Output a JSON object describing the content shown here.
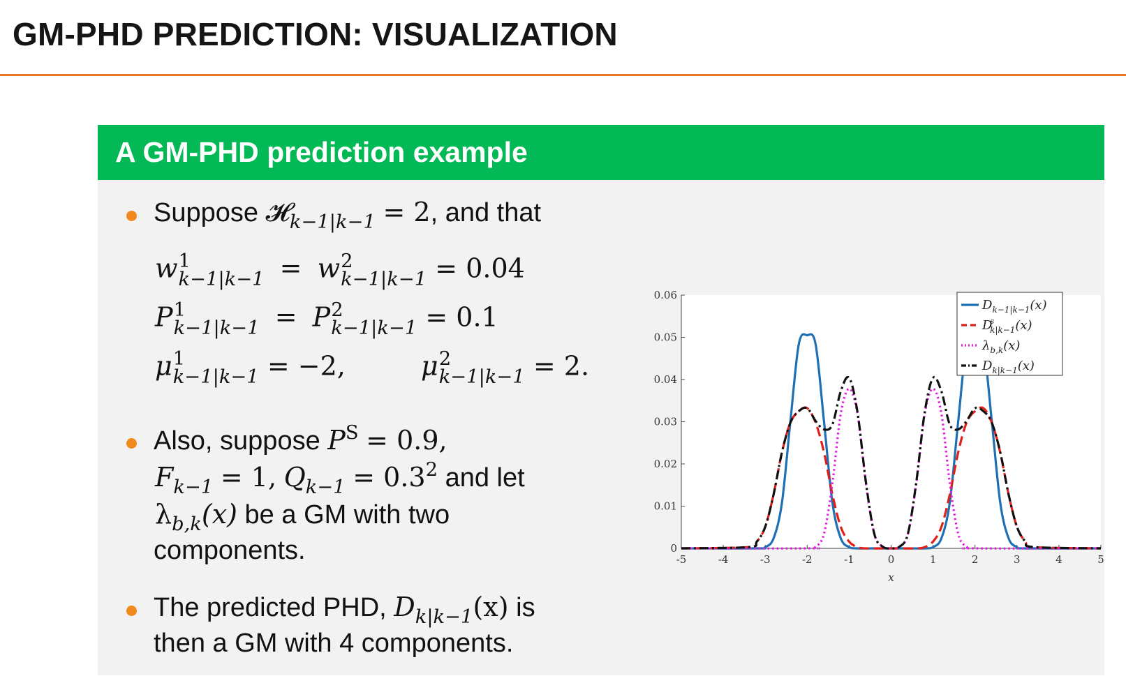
{
  "slide": {
    "title": "GM-PHD PREDICTION: VISUALIZATION"
  },
  "block": {
    "title": "A GM-PHD prediction example"
  },
  "bullets": {
    "b1": {
      "text_pre": "Suppose",
      "H_symbol": "𝓗",
      "H_sub": "k−1|k−1",
      "eq_value": "= 2",
      "text_post": ", and that"
    },
    "eqs": {
      "w_sym": "w",
      "w_sup1": "1",
      "w_sup2": "2",
      "w_sub": "k−1|k−1",
      "w_value": "= 0.04",
      "P_sym": "P",
      "P_sup1": "1",
      "P_sup2": "2",
      "P_sub": "k−1|k−1",
      "P_value": "= 0.1",
      "mu_sym": "μ",
      "mu_sup1": "1",
      "mu_sup2": "2",
      "mu_sub": "k−1|k−1",
      "mu_value1": "= −2,",
      "mu_value2": "= 2."
    },
    "b2": {
      "line1_pre": "Also, suppose",
      "PS_sym": "P",
      "PS_sup": "S",
      "PS_value": "= 0.9,",
      "F_sym": "F",
      "F_sub": "k−1",
      "F_value": "= 1,",
      "Q_sym": "Q",
      "Q_sub": "k−1",
      "Q_value": "= 0.3",
      "Q_sup": "2",
      "line2_post": "and let",
      "lambda_sym": "λ",
      "lambda_sub": "b,k",
      "lambda_arg": "(x)",
      "line3_post": "be a GM with two",
      "line4": "components."
    },
    "b3": {
      "line1_pre": "The predicted PHD,",
      "D_sym": "D",
      "D_sub": "k|k−1",
      "D_arg": "(x)",
      "line1_post": "is",
      "line2": "then a GM with 4 components."
    }
  },
  "chart_data": {
    "type": "line",
    "xlabel": "x",
    "ylabel": "",
    "xlim": [
      -5,
      5
    ],
    "ylim": [
      0,
      0.06
    ],
    "x_ticks": [
      -5,
      -4,
      -3,
      -2,
      -1,
      0,
      1,
      2,
      3,
      4,
      5
    ],
    "y_ticks": [
      0,
      0.01,
      0.02,
      0.03,
      0.04,
      0.05,
      0.06
    ],
    "y_tick_labels": [
      "0",
      "0.01",
      "0.02",
      "0.03",
      "0.04",
      "0.05",
      "0.06"
    ],
    "legend_position": "top-right",
    "series": [
      {
        "name": "D_{k−1|k−1}(x)",
        "legend_label": "D",
        "legend_sub": "k−1|k−1",
        "legend_sup": "",
        "legend_arg": "(x)",
        "color": "#1f6fb4",
        "style": "solid",
        "x": [
          -3.2,
          -3.0,
          -2.8,
          -2.6,
          -2.4,
          -2.2,
          -2.0,
          -1.8,
          -1.6,
          -1.4,
          -1.2,
          -1.0,
          -0.8,
          -0.4,
          0.0,
          0.4,
          0.8,
          1.0,
          1.2,
          1.4,
          1.6,
          1.8,
          2.0,
          2.2,
          2.4,
          2.6,
          2.8,
          3.0,
          3.2
        ],
        "y": [
          0.0,
          0.0003,
          0.0024,
          0.0109,
          0.0302,
          0.0484,
          0.0505,
          0.0484,
          0.0302,
          0.0109,
          0.0024,
          0.0003,
          0.0,
          0.0,
          0.0,
          0.0,
          0.0,
          0.0003,
          0.0024,
          0.0109,
          0.0302,
          0.0484,
          0.0505,
          0.0484,
          0.0302,
          0.0109,
          0.0024,
          0.0003,
          0.0
        ]
      },
      {
        "name": "D^s_{k|k−1}(x)",
        "legend_label": "D",
        "legend_sub": "k|k−1",
        "legend_sup": "s",
        "legend_arg": "(x)",
        "color": "#e0201b",
        "style": "dashed",
        "x": [
          -3.4,
          -3.2,
          -3.0,
          -2.8,
          -2.6,
          -2.4,
          -2.2,
          -2.0,
          -1.8,
          -1.6,
          -1.4,
          -1.2,
          -1.0,
          -0.8,
          -0.6,
          0.0,
          0.6,
          0.8,
          1.0,
          1.2,
          1.4,
          1.6,
          1.8,
          2.0,
          2.2,
          2.4,
          2.6,
          2.8,
          3.0,
          3.2,
          3.4
        ],
        "y": [
          0.0003,
          0.0016,
          0.0051,
          0.0128,
          0.0228,
          0.0298,
          0.0325,
          0.0332,
          0.0298,
          0.0228,
          0.0128,
          0.0051,
          0.0016,
          0.0003,
          0.0,
          0.0,
          0.0,
          0.0003,
          0.0016,
          0.0051,
          0.0128,
          0.0228,
          0.0298,
          0.0325,
          0.0332,
          0.0298,
          0.0228,
          0.0128,
          0.0051,
          0.0016,
          0.0003
        ]
      },
      {
        "name": "λ_{b,k}(x)",
        "legend_label": "λ",
        "legend_sub": "b,k",
        "legend_sup": "",
        "legend_arg": "(x)",
        "color": "#e21fe0",
        "style": "dotted",
        "x": [
          -2.0,
          -1.8,
          -1.6,
          -1.4,
          -1.2,
          -1.0,
          -0.8,
          -0.6,
          -0.4,
          -0.2,
          0.0,
          0.2,
          0.4,
          0.6,
          0.8,
          1.0,
          1.2,
          1.4,
          1.6,
          1.8,
          2.0
        ],
        "y": [
          0.0,
          0.0004,
          0.0034,
          0.0154,
          0.0319,
          0.0378,
          0.0319,
          0.0154,
          0.0034,
          0.0004,
          0.0,
          0.0004,
          0.0034,
          0.0154,
          0.0319,
          0.0378,
          0.0319,
          0.0154,
          0.0034,
          0.0004,
          0.0
        ]
      },
      {
        "name": "D_{k|k−1}(x)",
        "legend_label": "D",
        "legend_sub": "k|k−1",
        "legend_sup": "",
        "legend_arg": "(x)",
        "color": "#111111",
        "style": "dashdot",
        "x": [
          -3.4,
          -3.2,
          -3.0,
          -2.8,
          -2.6,
          -2.4,
          -2.2,
          -2.0,
          -1.8,
          -1.6,
          -1.4,
          -1.2,
          -1.0,
          -0.8,
          -0.6,
          -0.4,
          -0.2,
          0.0,
          0.2,
          0.4,
          0.6,
          0.8,
          1.0,
          1.2,
          1.4,
          1.6,
          1.8,
          2.0,
          2.2,
          2.4,
          2.6,
          2.8,
          3.0,
          3.2,
          3.4
        ],
        "y": [
          0.0003,
          0.0016,
          0.0051,
          0.0128,
          0.0228,
          0.0298,
          0.0325,
          0.0332,
          0.0302,
          0.0282,
          0.0293,
          0.0372,
          0.0404,
          0.0322,
          0.0157,
          0.0034,
          0.0004,
          0.0,
          0.0004,
          0.0034,
          0.0157,
          0.0322,
          0.0404,
          0.0372,
          0.0293,
          0.0282,
          0.0302,
          0.0332,
          0.0325,
          0.0298,
          0.0228,
          0.0128,
          0.0051,
          0.0016,
          0.0003
        ]
      }
    ]
  }
}
